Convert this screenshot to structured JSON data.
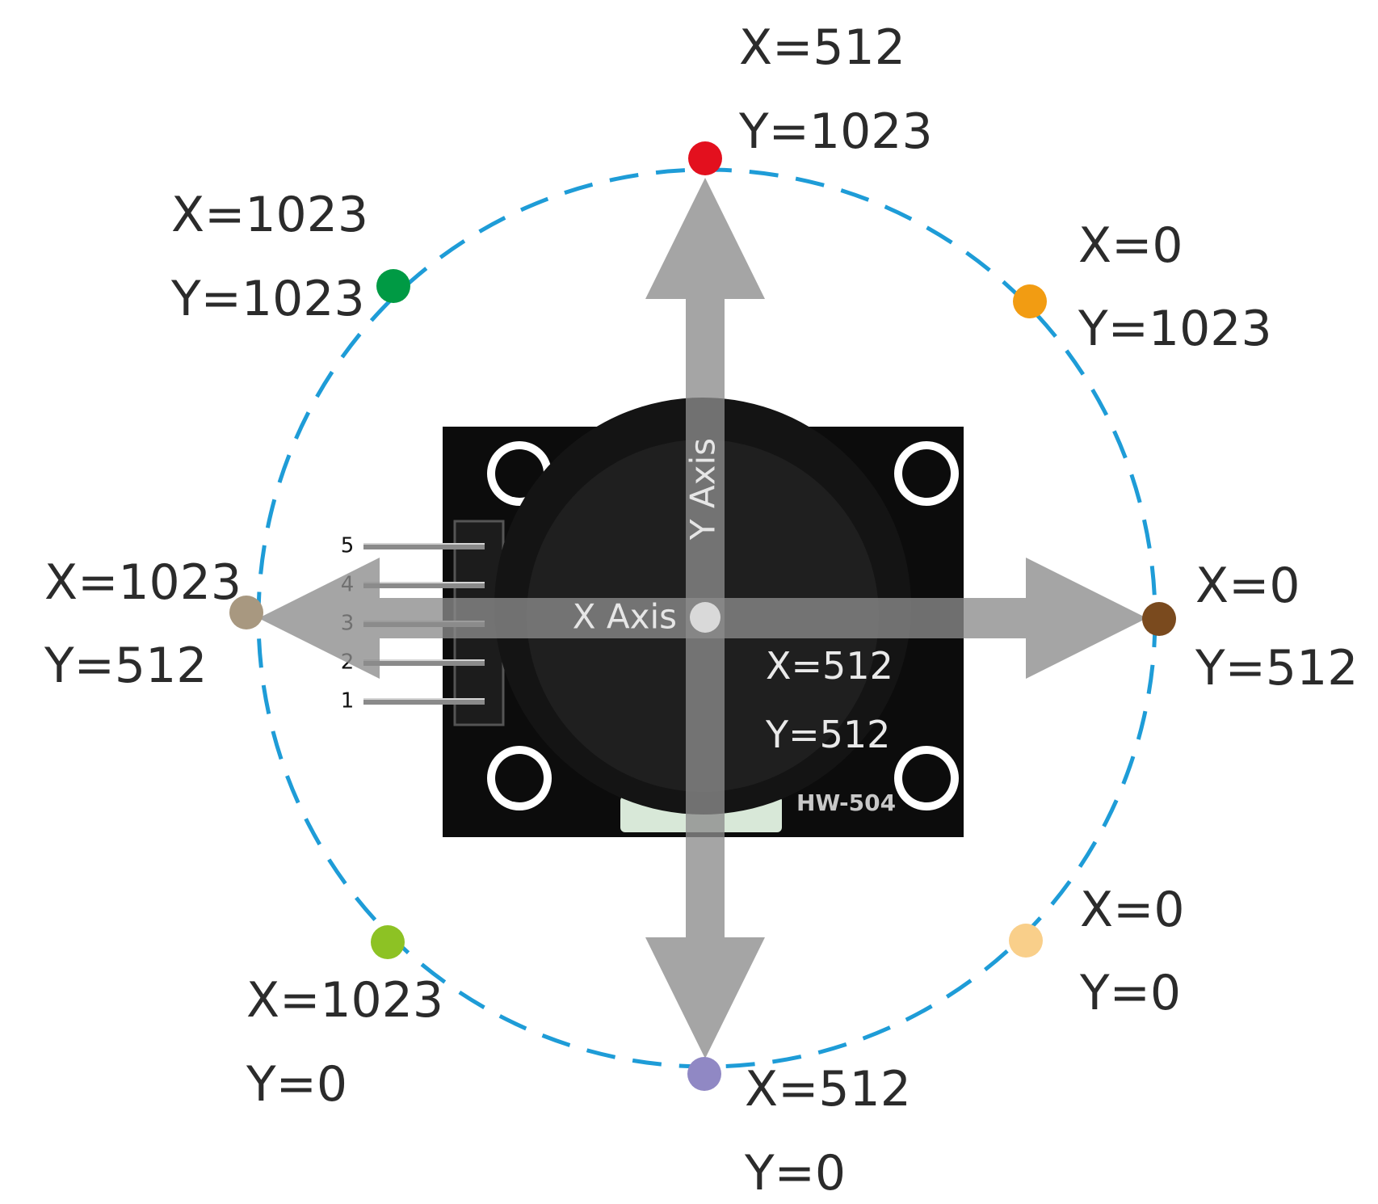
{
  "module": {
    "model_label": "HW-504",
    "pins": [
      "5",
      "4",
      "3",
      "2",
      "1"
    ]
  },
  "axes": {
    "x_axis_label": "X Axis",
    "y_axis_label": "Y Axis"
  },
  "center": {
    "x_text": "X=512",
    "y_text": "Y=512"
  },
  "positions": [
    {
      "id": "up",
      "x_text": "X=512",
      "y_text": "Y=1023",
      "color": "#e3101e"
    },
    {
      "id": "up-right",
      "x_text": "X=0",
      "y_text": "Y=1023",
      "color": "#f29c12"
    },
    {
      "id": "right",
      "x_text": "X=0",
      "y_text": "Y=512",
      "color": "#7a4a1e"
    },
    {
      "id": "down-right",
      "x_text": "X=0",
      "y_text": "Y=0",
      "color": "#f9cf8a"
    },
    {
      "id": "down",
      "x_text": "X=512",
      "y_text": "Y=0",
      "color": "#9088c4"
    },
    {
      "id": "down-left",
      "x_text": "X=1023",
      "y_text": "Y=0",
      "color": "#8dc224"
    },
    {
      "id": "left",
      "x_text": "X=1023",
      "y_text": "Y=512",
      "color": "#a89880"
    },
    {
      "id": "up-left",
      "x_text": "X=1023",
      "y_text": "Y=1023",
      "color": "#009a44"
    }
  ],
  "colors": {
    "circle": "#1e9cd7",
    "arrow": "#8c8c8c",
    "board": "#0c0c0c"
  }
}
